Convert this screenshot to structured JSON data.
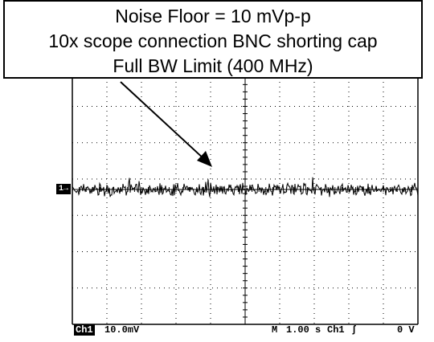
{
  "callout": {
    "line1": "Noise Floor = 10 mVp-p",
    "line2": "10x scope connection BNC shorting cap",
    "line3": "Full BW Limit (400 MHz)"
  },
  "channel_marker": "1→",
  "status_bar": {
    "channel": "Ch1",
    "volts_per_div": "10.0mV",
    "mode": "M",
    "time_per_div": "1.00 s",
    "trigger_source": "Ch1",
    "trigger_slope_symbol": "ʃ",
    "trigger_level": "0 V"
  },
  "colors": {
    "trace": "#000000",
    "grid": "#000000",
    "background": "#ffffff"
  }
}
